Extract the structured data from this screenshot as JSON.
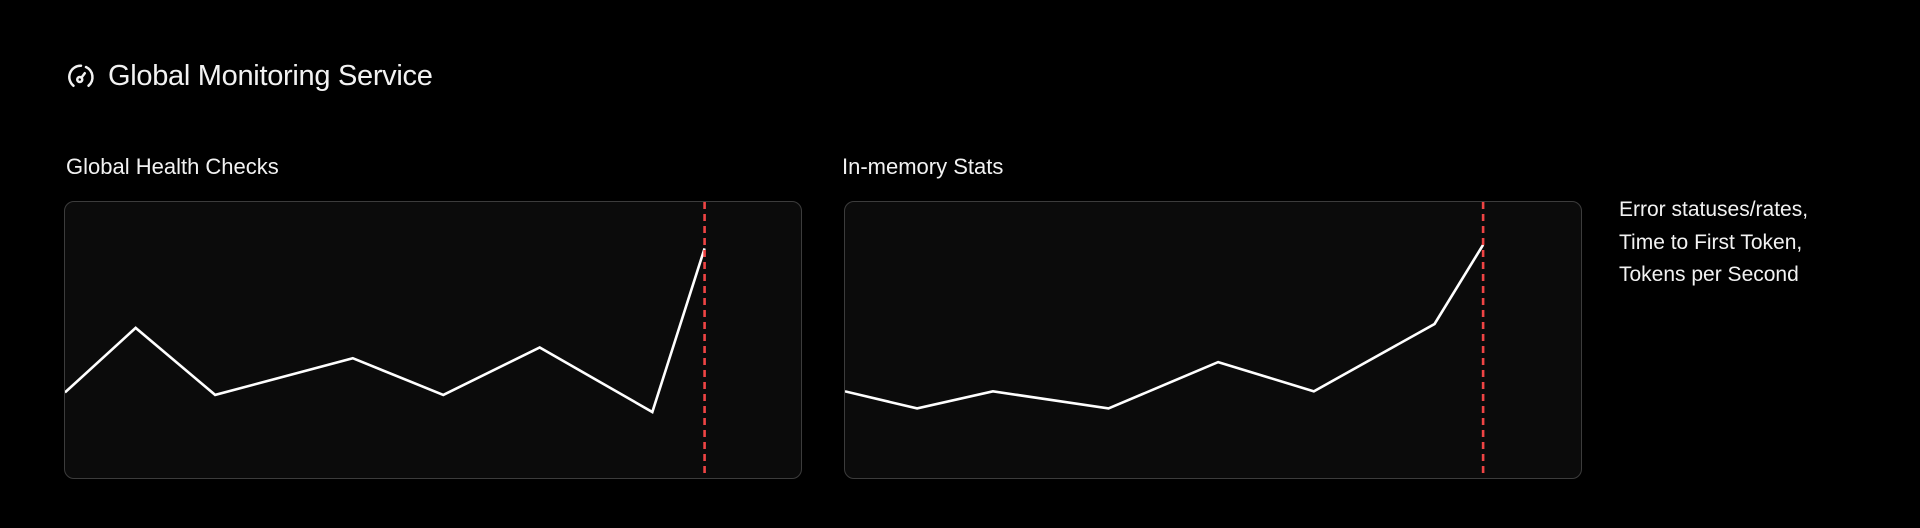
{
  "header": {
    "title": "Global Monitoring Service",
    "icon": "gauge-icon"
  },
  "notes": [
    "Error statuses/rates,",
    "Time to First Token,",
    "Tokens per Second"
  ],
  "colors": {
    "line": "#ffffff",
    "marker": "#ef4444",
    "panel_bg": "#0b0b0b"
  },
  "chart_data": [
    {
      "type": "line",
      "title": "Global Health Checks",
      "x": [
        0,
        9.6,
        20.4,
        39.1,
        51.4,
        64.5,
        79.8,
        86.9
      ],
      "values": [
        31,
        54.4,
        30.1,
        43.4,
        30.1,
        47.3,
        23.9,
        83.2
      ],
      "xlim": [
        0,
        100
      ],
      "ylim": [
        0,
        100
      ],
      "marker_x": 86.9,
      "grid": false
    },
    {
      "type": "line",
      "title": "In-memory Stats",
      "x": [
        0,
        9.8,
        20.1,
        35.8,
        50.7,
        63.7,
        80.1,
        86.7
      ],
      "values": [
        31.4,
        25.2,
        31.4,
        25.2,
        42,
        31.4,
        55.8,
        84.5
      ],
      "xlim": [
        0,
        100
      ],
      "ylim": [
        0,
        100
      ],
      "marker_x": 86.7,
      "grid": false
    }
  ]
}
